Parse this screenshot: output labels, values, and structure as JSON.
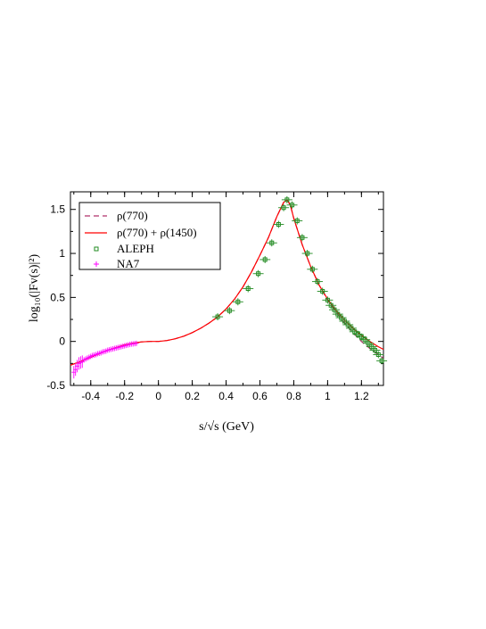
{
  "chart_data": {
    "type": "scatter",
    "xlabel": "s/√s (GeV)",
    "ylabel": "log₁₀(|Fᴠ(s)|²)",
    "xlim": [
      -0.52,
      1.33
    ],
    "ylim": [
      -0.5,
      1.7
    ],
    "x_ticks": [
      -0.4,
      -0.2,
      0,
      0.2,
      0.4,
      0.6,
      0.8,
      1,
      1.2
    ],
    "x_tick_labels": [
      "-0.4",
      "-0.2",
      "0",
      "0.2",
      "0.4",
      "0.6",
      "0.8",
      "1",
      "1.2"
    ],
    "y_ticks": [
      -0.5,
      0,
      0.5,
      1,
      1.5
    ],
    "y_tick_labels": [
      "-0.5",
      "0",
      "0.5",
      "1",
      "1.5"
    ],
    "grid": false,
    "legend_position": "top-left",
    "series": [
      {
        "name": "ρ(770)",
        "kind": "line",
        "style": "dashed",
        "color": "#b0306a",
        "x": [
          -0.52,
          -0.45,
          -0.4,
          -0.35,
          -0.3,
          -0.25,
          -0.2,
          -0.15,
          -0.1,
          -0.05,
          0,
          0.05,
          0.1,
          0.15,
          0.2,
          0.25,
          0.3,
          0.35,
          0.4,
          0.45,
          0.5,
          0.55,
          0.6,
          0.65,
          0.7,
          0.74,
          0.76,
          0.78,
          0.8,
          0.85,
          0.9,
          0.95,
          1.0,
          1.05,
          1.1,
          1.15,
          1.2,
          1.25,
          1.3,
          1.33
        ],
        "y": [
          -0.27,
          -0.22,
          -0.18,
          -0.14,
          -0.1,
          -0.07,
          -0.04,
          -0.02,
          -0.005,
          0,
          0,
          0.01,
          0.03,
          0.06,
          0.1,
          0.15,
          0.21,
          0.28,
          0.37,
          0.48,
          0.62,
          0.79,
          0.98,
          1.18,
          1.42,
          1.58,
          1.61,
          1.55,
          1.4,
          1.1,
          0.85,
          0.64,
          0.47,
          0.33,
          0.21,
          0.1,
          0.0,
          -0.08,
          -0.15,
          -0.19
        ]
      },
      {
        "name": "ρ(770) + ρ(1450)",
        "kind": "line",
        "style": "solid",
        "color": "#ff0000",
        "x": [
          -0.52,
          -0.45,
          -0.4,
          -0.35,
          -0.3,
          -0.25,
          -0.2,
          -0.15,
          -0.1,
          -0.05,
          0,
          0.05,
          0.1,
          0.15,
          0.2,
          0.25,
          0.3,
          0.35,
          0.4,
          0.45,
          0.5,
          0.55,
          0.6,
          0.65,
          0.7,
          0.74,
          0.76,
          0.78,
          0.8,
          0.85,
          0.9,
          0.95,
          1.0,
          1.05,
          1.1,
          1.15,
          1.2,
          1.25,
          1.3,
          1.33
        ],
        "y": [
          -0.27,
          -0.22,
          -0.18,
          -0.14,
          -0.1,
          -0.07,
          -0.04,
          -0.02,
          -0.005,
          0,
          0,
          0.01,
          0.03,
          0.06,
          0.1,
          0.15,
          0.21,
          0.28,
          0.37,
          0.48,
          0.62,
          0.79,
          0.98,
          1.18,
          1.42,
          1.58,
          1.61,
          1.55,
          1.4,
          1.1,
          0.85,
          0.64,
          0.48,
          0.35,
          0.24,
          0.15,
          0.07,
          0.0,
          -0.06,
          -0.09
        ]
      },
      {
        "name": "ALEPH",
        "kind": "points",
        "marker": "square",
        "color": "#228b22",
        "x": [
          0.35,
          0.42,
          0.47,
          0.53,
          0.59,
          0.63,
          0.67,
          0.71,
          0.74,
          0.76,
          0.79,
          0.82,
          0.85,
          0.88,
          0.91,
          0.94,
          0.97,
          1.0,
          1.02,
          1.04,
          1.06,
          1.08,
          1.1,
          1.12,
          1.14,
          1.16,
          1.18,
          1.2,
          1.22,
          1.24,
          1.26,
          1.28,
          1.3,
          1.32
        ],
        "y": [
          0.28,
          0.35,
          0.45,
          0.6,
          0.77,
          0.93,
          1.12,
          1.33,
          1.52,
          1.61,
          1.55,
          1.37,
          1.18,
          1.0,
          0.82,
          0.68,
          0.57,
          0.47,
          0.41,
          0.36,
          0.31,
          0.27,
          0.23,
          0.19,
          0.15,
          0.11,
          0.08,
          0.05,
          0.02,
          -0.02,
          -0.06,
          -0.1,
          -0.15,
          -0.22
        ]
      },
      {
        "name": "NA7",
        "kind": "points",
        "marker": "plus",
        "color": "#ff00ff",
        "x": [
          -0.5,
          -0.49,
          -0.48,
          -0.47,
          -0.46,
          -0.45,
          -0.44,
          -0.43,
          -0.42,
          -0.41,
          -0.4,
          -0.39,
          -0.38,
          -0.37,
          -0.36,
          -0.35,
          -0.34,
          -0.33,
          -0.32,
          -0.31,
          -0.3,
          -0.29,
          -0.28,
          -0.27,
          -0.26,
          -0.25,
          -0.24,
          -0.23,
          -0.22,
          -0.21,
          -0.2,
          -0.19,
          -0.18,
          -0.17,
          -0.16,
          -0.15,
          -0.14,
          -0.13
        ],
        "y": [
          -0.35,
          -0.32,
          -0.28,
          -0.25,
          -0.24,
          -0.23,
          -0.21,
          -0.2,
          -0.19,
          -0.18,
          -0.17,
          -0.16,
          -0.155,
          -0.15,
          -0.14,
          -0.135,
          -0.13,
          -0.12,
          -0.115,
          -0.11,
          -0.1,
          -0.095,
          -0.09,
          -0.085,
          -0.08,
          -0.075,
          -0.07,
          -0.065,
          -0.06,
          -0.055,
          -0.05,
          -0.045,
          -0.04,
          -0.035,
          -0.03,
          -0.028,
          -0.025,
          -0.022
        ]
      }
    ]
  }
}
